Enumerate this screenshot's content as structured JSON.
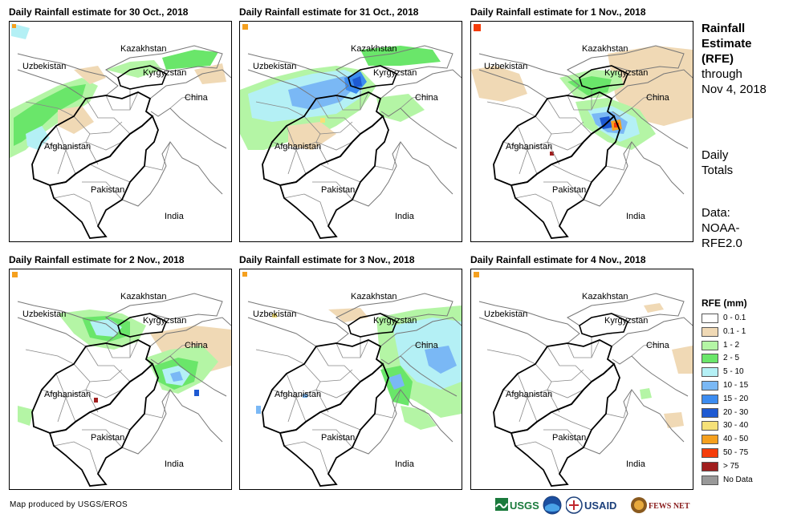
{
  "panels": [
    {
      "title": "Daily Rainfall estimate for 30 Oct., 2018",
      "labels": {
        "kazakhstan": "Kazakhstan",
        "kyrgyzstan": "Kyrgyzstan",
        "uzbekistan": "Uzbekistan",
        "china": "China",
        "afghanistan": "Afghanistan",
        "pakistan": "Pakistan",
        "india": "India"
      }
    },
    {
      "title": "Daily Rainfall estimate for 31 Oct., 2018",
      "labels": {
        "kazakhstan": "Kazakhstan",
        "kyrgyzstan": "Kyrgyzstan",
        "uzbekistan": "Uzbekistan",
        "china": "China",
        "afghanistan": "Afghanistan",
        "pakistan": "Pakistan",
        "india": "India"
      }
    },
    {
      "title": "Daily Rainfall estimate for 1 Nov., 2018",
      "labels": {
        "kazakhstan": "Kazakhstan",
        "kyrgyzstan": "Kyrgyzstan",
        "uzbekistan": "Uzbekistan",
        "china": "China",
        "afghanistan": "Afghanistan",
        "pakistan": "Pakistan",
        "india": "India"
      }
    },
    {
      "title": "Daily Rainfall estimate for 2 Nov., 2018",
      "labels": {
        "kazakhstan": "Kazakhstan",
        "kyrgyzstan": "Kyrgyzstan",
        "uzbekistan": "Uzbekistan",
        "china": "China",
        "afghanistan": "Afghanistan",
        "pakistan": "Pakistan",
        "india": "India"
      }
    },
    {
      "title": "Daily Rainfall estimate for 3 Nov., 2018",
      "labels": {
        "kazakhstan": "Kazakhstan",
        "kyrgyzstan": "Kyrgyzstan",
        "uzbekistan": "Uzbekistan",
        "china": "China",
        "afghanistan": "Afghanistan",
        "pakistan": "Pakistan",
        "india": "India"
      }
    },
    {
      "title": "Daily Rainfall estimate for 4 Nov., 2018",
      "labels": {
        "kazakhstan": "Kazakhstan",
        "kyrgyzstan": "Kyrgyzstan",
        "uzbekistan": "Uzbekistan",
        "china": "China",
        "afghanistan": "Afghanistan",
        "pakistan": "Pakistan",
        "india": "India"
      }
    }
  ],
  "sidebar": {
    "line1": "Rainfall",
    "line2": "Estimate",
    "line3": "(RFE)",
    "line4": "through",
    "line5": "Nov 4, 2018",
    "totals1": "Daily",
    "totals2": "Totals",
    "data1": "Data:",
    "data2": "NOAA-",
    "data3": "RFE2.0"
  },
  "legend": {
    "title": "RFE (mm)",
    "items": [
      {
        "label": "0 - 0.1",
        "color": "#ffffff"
      },
      {
        "label": "0.1 - 1",
        "color": "#f0d9b5"
      },
      {
        "label": "1 - 2",
        "color": "#b4f5a5"
      },
      {
        "label": "2 - 5",
        "color": "#6ae66a"
      },
      {
        "label": "5 - 10",
        "color": "#b4f0f5"
      },
      {
        "label": "10 - 15",
        "color": "#7ab8f5"
      },
      {
        "label": "15 - 20",
        "color": "#3c8cf0"
      },
      {
        "label": "20 - 30",
        "color": "#1e5ad2"
      },
      {
        "label": "30 - 40",
        "color": "#f5e178"
      },
      {
        "label": "40 - 50",
        "color": "#f5a01e"
      },
      {
        "label": "50 - 75",
        "color": "#f53c0a"
      },
      {
        "label": "> 75",
        "color": "#a01e1e"
      },
      {
        "label": "No Data",
        "color": "#999999"
      }
    ]
  },
  "credit": "Map produced by USGS/EROS",
  "logos": {
    "usgs": "USGS",
    "usaid": "USAID",
    "fewsnet": "FEWS NET"
  }
}
